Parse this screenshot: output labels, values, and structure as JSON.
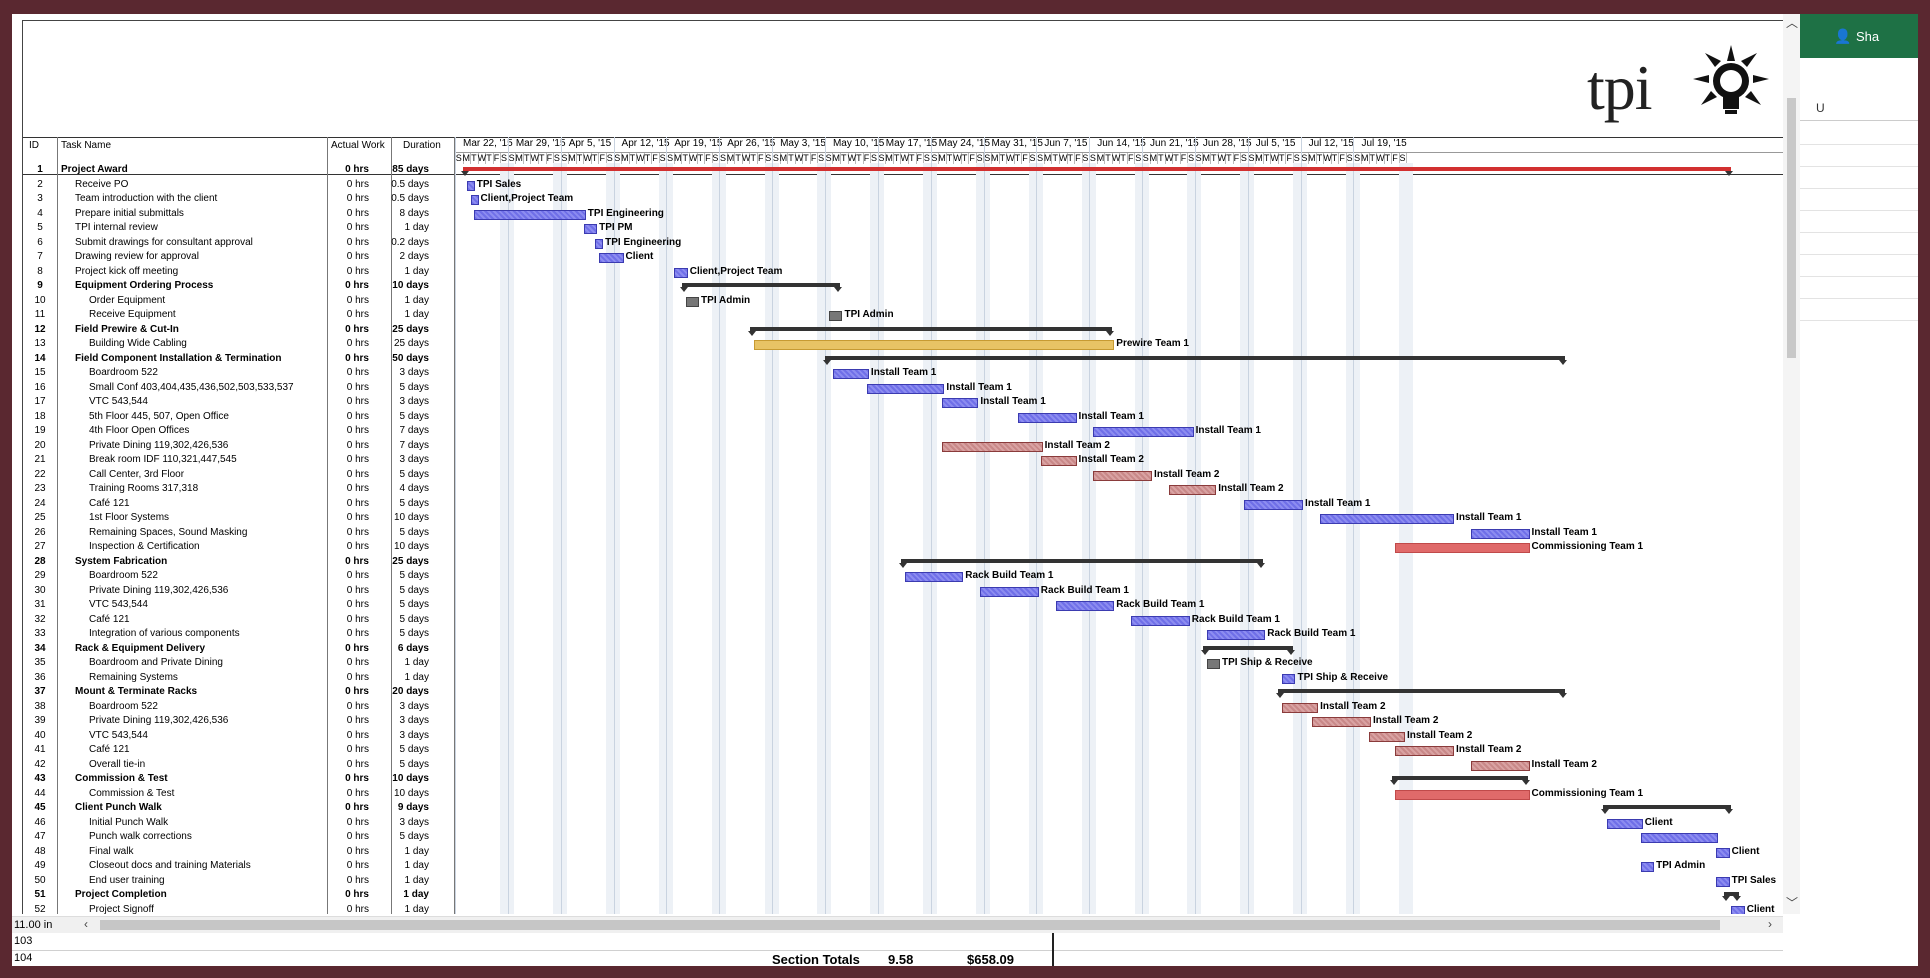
{
  "logo": {
    "text": "tpi"
  },
  "columns": {
    "id": "ID",
    "name": "Task Name",
    "work": "Actual Work",
    "duration": "Duration"
  },
  "weeks": [
    "Mar 22, '15",
    "Mar 29, '15",
    "Apr 5, '15",
    "Apr 12, '15",
    "Apr 19, '15",
    "Apr 26, '15",
    "May 3, '15",
    "May 10, '15",
    "May 17, '15",
    "May 24, '15",
    "May 31, '15",
    "Jun 7, '15",
    "Jun 14, '15",
    "Jun 21, '15",
    "Jun 28, '15",
    "Jul 5, '15",
    "Jul 12, '15",
    "Jul 19, '15"
  ],
  "day_letters": [
    "S",
    "M",
    "T",
    "W",
    "T",
    "F",
    "S"
  ],
  "tasks": [
    {
      "id": "1",
      "name": "Project Award",
      "work": "0 hrs",
      "dur": "85 days",
      "bold": true,
      "indent": 0
    },
    {
      "id": "2",
      "name": "Receive PO",
      "work": "0 hrs",
      "dur": "0.5 days",
      "bold": false,
      "indent": 1
    },
    {
      "id": "3",
      "name": "Team introduction with the client",
      "work": "0 hrs",
      "dur": "0.5 days",
      "bold": false,
      "indent": 1
    },
    {
      "id": "4",
      "name": "Prepare initial submittals",
      "work": "0 hrs",
      "dur": "8 days",
      "bold": false,
      "indent": 1
    },
    {
      "id": "5",
      "name": "TPI internal review",
      "work": "0 hrs",
      "dur": "1 day",
      "bold": false,
      "indent": 1
    },
    {
      "id": "6",
      "name": "Submit drawings for consultant approval",
      "work": "0 hrs",
      "dur": "0.2 days",
      "bold": false,
      "indent": 1
    },
    {
      "id": "7",
      "name": "Drawing review for approval",
      "work": "0 hrs",
      "dur": "2 days",
      "bold": false,
      "indent": 1
    },
    {
      "id": "8",
      "name": "Project kick off meeting",
      "work": "0 hrs",
      "dur": "1 day",
      "bold": false,
      "indent": 1
    },
    {
      "id": "9",
      "name": "Equipment Ordering Process",
      "work": "0 hrs",
      "dur": "10 days",
      "bold": true,
      "indent": 1
    },
    {
      "id": "10",
      "name": "Order Equipment",
      "work": "0 hrs",
      "dur": "1 day",
      "bold": false,
      "indent": 2
    },
    {
      "id": "11",
      "name": "Receive Equipment",
      "work": "0 hrs",
      "dur": "1 day",
      "bold": false,
      "indent": 2
    },
    {
      "id": "12",
      "name": "Field Prewire & Cut-In",
      "work": "0 hrs",
      "dur": "25 days",
      "bold": true,
      "indent": 1
    },
    {
      "id": "13",
      "name": "Building Wide Cabling",
      "work": "0 hrs",
      "dur": "25 days",
      "bold": false,
      "indent": 2
    },
    {
      "id": "14",
      "name": "Field Component Installation & Termination",
      "work": "0 hrs",
      "dur": "50 days",
      "bold": true,
      "indent": 1
    },
    {
      "id": "15",
      "name": "Boardroom 522",
      "work": "0 hrs",
      "dur": "3 days",
      "bold": false,
      "indent": 2
    },
    {
      "id": "16",
      "name": "Small Conf 403,404,435,436,502,503,533,537",
      "work": "0 hrs",
      "dur": "5 days",
      "bold": false,
      "indent": 2
    },
    {
      "id": "17",
      "name": "VTC 543,544",
      "work": "0 hrs",
      "dur": "3 days",
      "bold": false,
      "indent": 2
    },
    {
      "id": "18",
      "name": "5th Floor 445, 507, Open Office",
      "work": "0 hrs",
      "dur": "5 days",
      "bold": false,
      "indent": 2
    },
    {
      "id": "19",
      "name": "4th Floor Open Offices",
      "work": "0 hrs",
      "dur": "7 days",
      "bold": false,
      "indent": 2
    },
    {
      "id": "20",
      "name": "Private Dining 119,302,426,536",
      "work": "0 hrs",
      "dur": "7 days",
      "bold": false,
      "indent": 2
    },
    {
      "id": "21",
      "name": "Break room IDF 110,321,447,545",
      "work": "0 hrs",
      "dur": "3 days",
      "bold": false,
      "indent": 2
    },
    {
      "id": "22",
      "name": "Call Center, 3rd Floor",
      "work": "0 hrs",
      "dur": "5 days",
      "bold": false,
      "indent": 2
    },
    {
      "id": "23",
      "name": "Training Rooms 317,318",
      "work": "0 hrs",
      "dur": "4 days",
      "bold": false,
      "indent": 2
    },
    {
      "id": "24",
      "name": "Café 121",
      "work": "0 hrs",
      "dur": "5 days",
      "bold": false,
      "indent": 2
    },
    {
      "id": "25",
      "name": "1st Floor Systems",
      "work": "0 hrs",
      "dur": "10 days",
      "bold": false,
      "indent": 2
    },
    {
      "id": "26",
      "name": "Remaining Spaces, Sound Masking",
      "work": "0 hrs",
      "dur": "5 days",
      "bold": false,
      "indent": 2
    },
    {
      "id": "27",
      "name": "Inspection & Certification",
      "work": "0 hrs",
      "dur": "10 days",
      "bold": false,
      "indent": 2
    },
    {
      "id": "28",
      "name": "System Fabrication",
      "work": "0 hrs",
      "dur": "25 days",
      "bold": true,
      "indent": 1
    },
    {
      "id": "29",
      "name": "Boardroom 522",
      "work": "0 hrs",
      "dur": "5 days",
      "bold": false,
      "indent": 2
    },
    {
      "id": "30",
      "name": "Private Dining 119,302,426,536",
      "work": "0 hrs",
      "dur": "5 days",
      "bold": false,
      "indent": 2
    },
    {
      "id": "31",
      "name": "VTC 543,544",
      "work": "0 hrs",
      "dur": "5 days",
      "bold": false,
      "indent": 2
    },
    {
      "id": "32",
      "name": "Café 121",
      "work": "0 hrs",
      "dur": "5 days",
      "bold": false,
      "indent": 2
    },
    {
      "id": "33",
      "name": "Integration of various components",
      "work": "0 hrs",
      "dur": "5 days",
      "bold": false,
      "indent": 2
    },
    {
      "id": "34",
      "name": "Rack & Equipment Delivery",
      "work": "0 hrs",
      "dur": "6 days",
      "bold": true,
      "indent": 1
    },
    {
      "id": "35",
      "name": "Boardroom and Private Dining",
      "work": "0 hrs",
      "dur": "1 day",
      "bold": false,
      "indent": 2
    },
    {
      "id": "36",
      "name": "Remaining Systems",
      "work": "0 hrs",
      "dur": "1 day",
      "bold": false,
      "indent": 2
    },
    {
      "id": "37",
      "name": "Mount & Terminate Racks",
      "work": "0 hrs",
      "dur": "20 days",
      "bold": true,
      "indent": 1
    },
    {
      "id": "38",
      "name": "Boardroom 522",
      "work": "0 hrs",
      "dur": "3 days",
      "bold": false,
      "indent": 2
    },
    {
      "id": "39",
      "name": "Private Dining 119,302,426,536",
      "work": "0 hrs",
      "dur": "3 days",
      "bold": false,
      "indent": 2
    },
    {
      "id": "40",
      "name": "VTC 543,544",
      "work": "0 hrs",
      "dur": "3 days",
      "bold": false,
      "indent": 2
    },
    {
      "id": "41",
      "name": "Café 121",
      "work": "0 hrs",
      "dur": "5 days",
      "bold": false,
      "indent": 2
    },
    {
      "id": "42",
      "name": "Overall tie-in",
      "work": "0 hrs",
      "dur": "5 days",
      "bold": false,
      "indent": 2
    },
    {
      "id": "43",
      "name": "Commission & Test",
      "work": "0 hrs",
      "dur": "10 days",
      "bold": true,
      "indent": 1
    },
    {
      "id": "44",
      "name": "Commission & Test",
      "work": "0 hrs",
      "dur": "10 days",
      "bold": false,
      "indent": 2
    },
    {
      "id": "45",
      "name": "Client Punch Walk",
      "work": "0 hrs",
      "dur": "9 days",
      "bold": true,
      "indent": 1
    },
    {
      "id": "46",
      "name": "Initial Punch Walk",
      "work": "0 hrs",
      "dur": "3 days",
      "bold": false,
      "indent": 2
    },
    {
      "id": "47",
      "name": "Punch walk corrections",
      "work": "0 hrs",
      "dur": "5 days",
      "bold": false,
      "indent": 2
    },
    {
      "id": "48",
      "name": "Final walk",
      "work": "0 hrs",
      "dur": "1 day",
      "bold": false,
      "indent": 2
    },
    {
      "id": "49",
      "name": "Closeout docs and training Materials",
      "work": "0 hrs",
      "dur": "1 day",
      "bold": false,
      "indent": 2
    },
    {
      "id": "50",
      "name": "End user training",
      "work": "0 hrs",
      "dur": "1 day",
      "bold": false,
      "indent": 2
    },
    {
      "id": "51",
      "name": "Project Completion",
      "work": "0 hrs",
      "dur": "1 day",
      "bold": true,
      "indent": 1
    },
    {
      "id": "52",
      "name": "Project Signoff",
      "work": "0 hrs",
      "dur": "1 day",
      "bold": false,
      "indent": 2
    }
  ],
  "bars": [
    {
      "row": 1,
      "kind": "sum-red",
      "start": 0,
      "len": 168,
      "label": ""
    },
    {
      "row": 2,
      "kind": "blue",
      "start": 0.5,
      "len": 0.5,
      "label": "TPI Sales"
    },
    {
      "row": 3,
      "kind": "blue",
      "start": 1,
      "len": 0.5,
      "label": "Client,Project Team"
    },
    {
      "row": 4,
      "kind": "blue",
      "start": 1.5,
      "len": 14.5,
      "label": "TPI Engineering"
    },
    {
      "row": 5,
      "kind": "blue",
      "start": 16,
      "len": 1.5,
      "label": "TPI PM"
    },
    {
      "row": 6,
      "kind": "blue",
      "start": 17.5,
      "len": 0.4,
      "label": "TPI Engineering"
    },
    {
      "row": 7,
      "kind": "blue",
      "start": 18,
      "len": 3,
      "label": "Client"
    },
    {
      "row": 8,
      "kind": "blue",
      "start": 28,
      "len": 1.5,
      "label": "Client,Project Team"
    },
    {
      "row": 9,
      "kind": "sum",
      "start": 29,
      "len": 21,
      "label": ""
    },
    {
      "row": 10,
      "kind": "gray",
      "start": 29.5,
      "len": 1.5,
      "label": "TPI Admin"
    },
    {
      "row": 11,
      "kind": "gray",
      "start": 48.5,
      "len": 1.5,
      "label": "TPI Admin"
    },
    {
      "row": 12,
      "kind": "sum",
      "start": 38,
      "len": 48,
      "label": ""
    },
    {
      "row": 13,
      "kind": "gold",
      "start": 38.5,
      "len": 47.5,
      "label": "Prewire Team 1"
    },
    {
      "row": 14,
      "kind": "sum",
      "start": 48,
      "len": 98,
      "label": ""
    },
    {
      "row": 15,
      "kind": "blue",
      "start": 49,
      "len": 4.5,
      "label": "Install Team 1"
    },
    {
      "row": 16,
      "kind": "blue",
      "start": 53.5,
      "len": 10,
      "label": "Install Team 1"
    },
    {
      "row": 17,
      "kind": "blue",
      "start": 63.5,
      "len": 4.5,
      "label": "Install Team 1"
    },
    {
      "row": 18,
      "kind": "blue",
      "start": 73.5,
      "len": 7.5,
      "label": "Install Team 1"
    },
    {
      "row": 19,
      "kind": "blue",
      "start": 83.5,
      "len": 13,
      "label": "Install Team 1"
    },
    {
      "row": 20,
      "kind": "red",
      "start": 63.5,
      "len": 13,
      "label": "Install Team 2"
    },
    {
      "row": 21,
      "kind": "red",
      "start": 76.5,
      "len": 4.5,
      "label": "Install Team 2"
    },
    {
      "row": 22,
      "kind": "red",
      "start": 83.5,
      "len": 7.5,
      "label": "Install Team 2"
    },
    {
      "row": 23,
      "kind": "red",
      "start": 93.5,
      "len": 6,
      "label": "Install Team 2"
    },
    {
      "row": 24,
      "kind": "blue",
      "start": 103.5,
      "len": 7.5,
      "label": "Install Team 1"
    },
    {
      "row": 25,
      "kind": "blue",
      "start": 113.5,
      "len": 17.5,
      "label": "Install Team 1"
    },
    {
      "row": 26,
      "kind": "blue",
      "start": 133.5,
      "len": 7.5,
      "label": "Install Team 1"
    },
    {
      "row": 27,
      "kind": "pink",
      "start": 123.5,
      "len": 17.5,
      "label": "Commissioning Team 1"
    },
    {
      "row": 28,
      "kind": "sum",
      "start": 58,
      "len": 48,
      "label": ""
    },
    {
      "row": 29,
      "kind": "blue",
      "start": 58.5,
      "len": 7.5,
      "label": "Rack Build Team 1"
    },
    {
      "row": 30,
      "kind": "blue",
      "start": 68.5,
      "len": 7.5,
      "label": "Rack Build Team 1"
    },
    {
      "row": 31,
      "kind": "blue",
      "start": 78.5,
      "len": 7.5,
      "label": "Rack Build Team 1"
    },
    {
      "row": 32,
      "kind": "blue",
      "start": 88.5,
      "len": 7.5,
      "label": "Rack Build Team 1"
    },
    {
      "row": 33,
      "kind": "blue",
      "start": 98.5,
      "len": 7.5,
      "label": "Rack Build Team 1"
    },
    {
      "row": 34,
      "kind": "sum",
      "start": 98,
      "len": 12,
      "label": ""
    },
    {
      "row": 35,
      "kind": "gray",
      "start": 98.5,
      "len": 1.5,
      "label": "TPI Ship & Receive"
    },
    {
      "row": 36,
      "kind": "blue",
      "start": 108.5,
      "len": 1.5,
      "label": "TPI Ship & Receive"
    },
    {
      "row": 37,
      "kind": "sum",
      "start": 108,
      "len": 38,
      "label": ""
    },
    {
      "row": 38,
      "kind": "red",
      "start": 108.5,
      "len": 4.5,
      "label": "Install Team 2"
    },
    {
      "row": 39,
      "kind": "red",
      "start": 112.5,
      "len": 7.5,
      "label": "Install Team 2"
    },
    {
      "row": 40,
      "kind": "red",
      "start": 120,
      "len": 4.5,
      "label": "Install Team 2"
    },
    {
      "row": 41,
      "kind": "red",
      "start": 123.5,
      "len": 7.5,
      "label": "Install Team 2"
    },
    {
      "row": 42,
      "kind": "red",
      "start": 133.5,
      "len": 7.5,
      "label": "Install Team 2"
    },
    {
      "row": 43,
      "kind": "sum",
      "start": 123,
      "len": 18,
      "label": ""
    },
    {
      "row": 44,
      "kind": "pink",
      "start": 123.5,
      "len": 17.5,
      "label": "Commissioning Team 1"
    },
    {
      "row": 45,
      "kind": "sum",
      "start": 151,
      "len": 17,
      "label": ""
    },
    {
      "row": 46,
      "kind": "blue",
      "start": 151.5,
      "len": 4.5,
      "label": "Client"
    },
    {
      "row": 47,
      "kind": "blue",
      "start": 156,
      "len": 10,
      "label": ""
    },
    {
      "row": 48,
      "kind": "blue",
      "start": 166,
      "len": 1.5,
      "label": "Client"
    },
    {
      "row": 49,
      "kind": "blue",
      "start": 156,
      "len": 1.5,
      "label": "TPI Admin"
    },
    {
      "row": 50,
      "kind": "blue",
      "start": 166,
      "len": 1.5,
      "label": "TPI Sales"
    },
    {
      "row": 51,
      "kind": "sum",
      "start": 167,
      "len": 2,
      "label": ""
    },
    {
      "row": 52,
      "kind": "blue",
      "start": 168,
      "len": 1.5,
      "label": "Client"
    }
  ],
  "sheet": {
    "zoom": "11.00 in",
    "rows": [
      {
        "num": "103",
        "label": "",
        "value1": "",
        "value2": ""
      },
      {
        "num": "104",
        "label": "Section Totals",
        "value1": "9.58",
        "value2": "$658.09"
      }
    ],
    "col_header": "U",
    "share_label": "Sha"
  }
}
